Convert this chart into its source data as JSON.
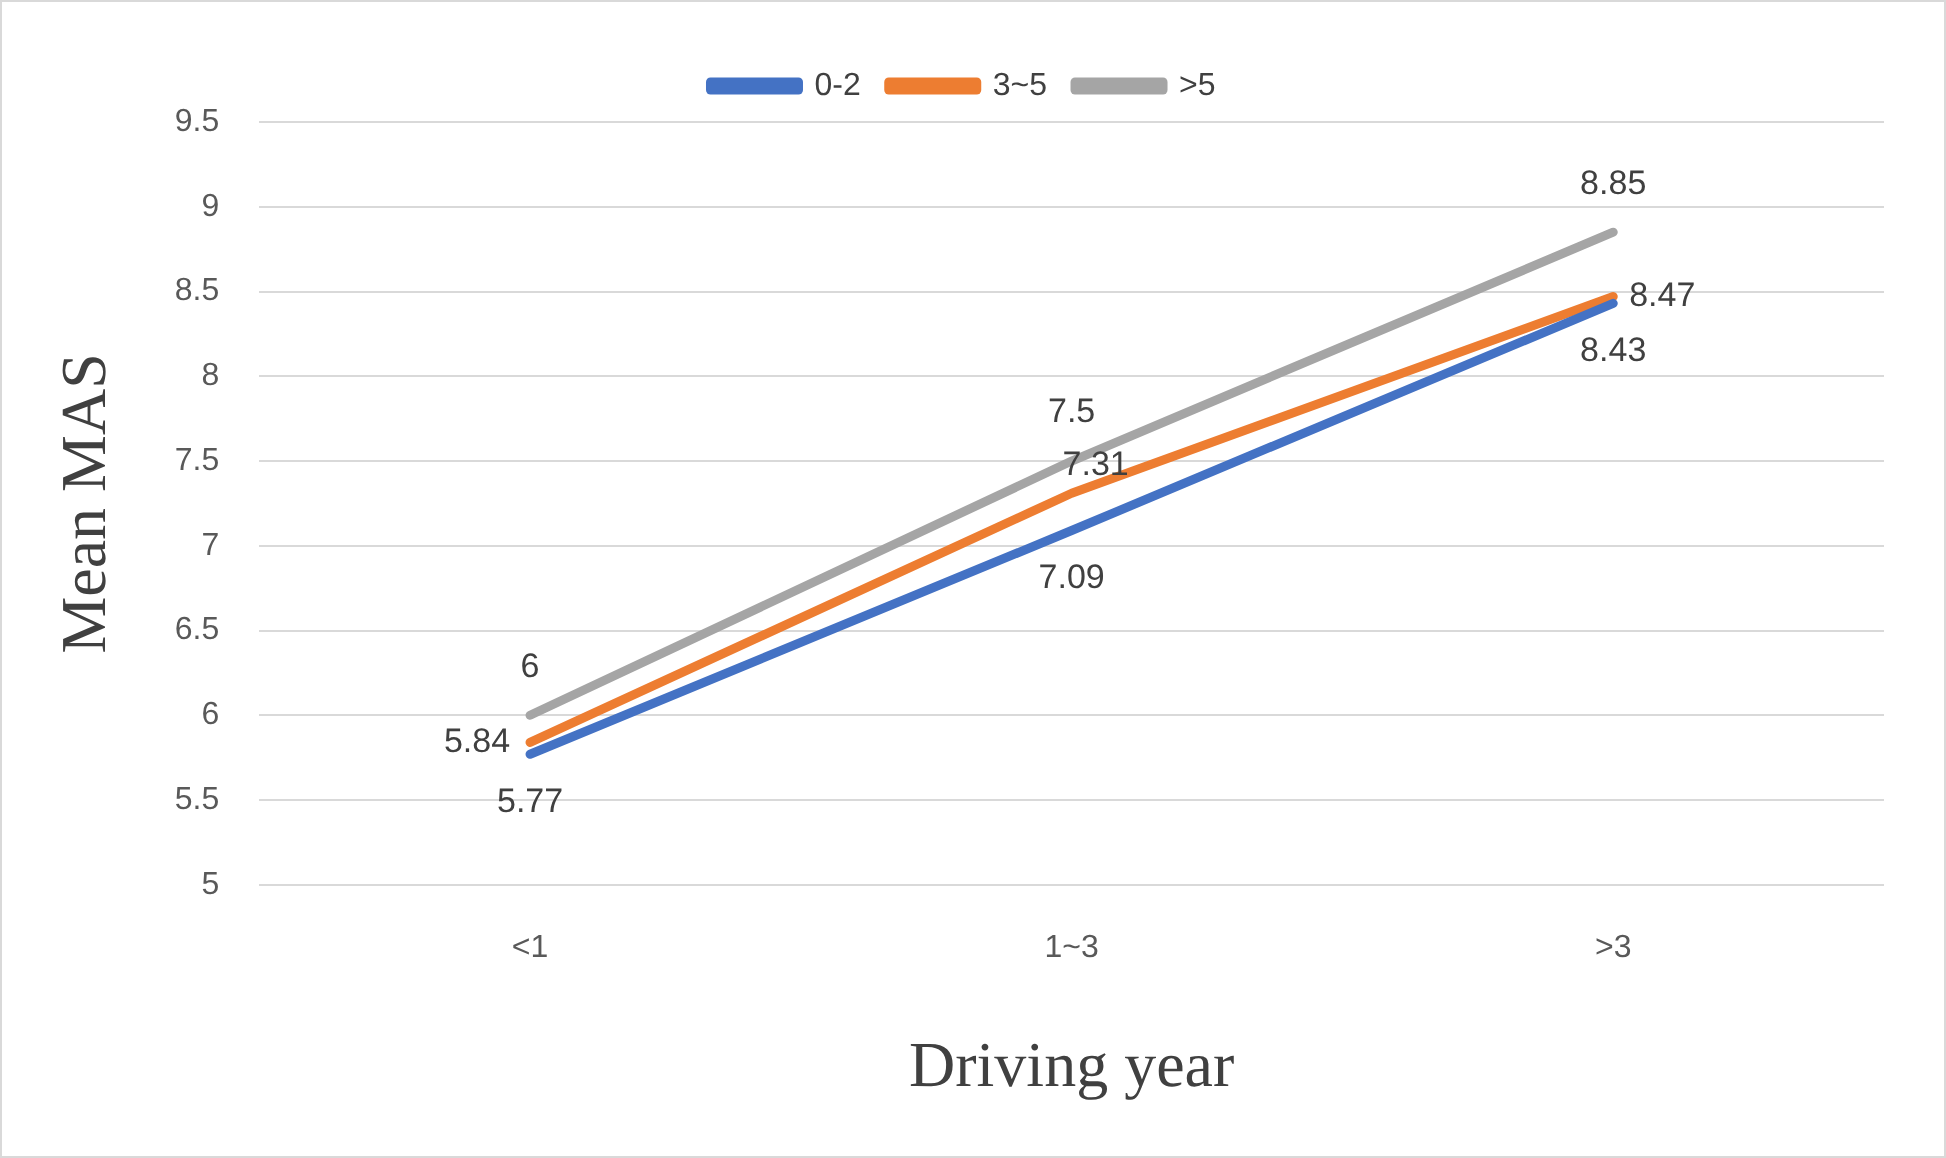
{
  "chart_data": {
    "type": "line",
    "xlabel": "Driving year",
    "ylabel": "Mean MAS",
    "categories": [
      "<1",
      "1~3",
      ">3"
    ],
    "series": [
      {
        "name": "0-2",
        "color": "#4472c4",
        "values": [
          5.77,
          7.09,
          8.43
        ]
      },
      {
        "name": "3~5",
        "color": "#ed7d31",
        "values": [
          5.84,
          7.31,
          8.47
        ]
      },
      {
        "name": ">5",
        "color": "#a5a5a5",
        "values": [
          6,
          7.5,
          8.85
        ]
      }
    ],
    "ylim": [
      5,
      9.5
    ],
    "yticks": [
      5,
      5.5,
      6,
      6.5,
      7,
      7.5,
      8,
      8.5,
      9,
      9.5
    ],
    "grid": "y",
    "legend": "top",
    "marker": "none",
    "line_style": "solid",
    "data_labels": true
  }
}
